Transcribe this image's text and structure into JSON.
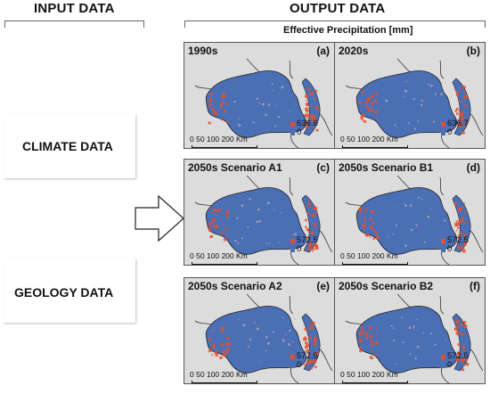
{
  "input_header": "INPUT DATA",
  "output_header": "OUTPUT DATA",
  "output_subtitle": "Effective Precipitation [mm]",
  "inputs": [
    {
      "label": "CLIMATE DATA"
    },
    {
      "label": "GEOLOGY DATA"
    }
  ],
  "scale_text": "0  50 100     200 Km",
  "panels": [
    {
      "title": "1990s",
      "tag": "(a)",
      "max": "636.6",
      "min": "0"
    },
    {
      "title": "2020s",
      "tag": "(b)",
      "max": "636.7",
      "min": "0"
    },
    {
      "title": "2050s Scenario A1",
      "tag": "(c)",
      "max": "572.5",
      "min": "0"
    },
    {
      "title": "2050s Scenario B1",
      "tag": "(d)",
      "max": "572.5",
      "min": "0"
    },
    {
      "title": "2050s Scenario A2",
      "tag": "(e)",
      "max": "572.5",
      "min": "0"
    },
    {
      "title": "2050s Scenario B2",
      "tag": "(f)",
      "max": "572.5",
      "min": "0"
    }
  ],
  "colors": {
    "high": "#e2502f",
    "low": "#4a6fb5",
    "map_fill": "#4a6fb5",
    "background": "#dcdcdc"
  }
}
